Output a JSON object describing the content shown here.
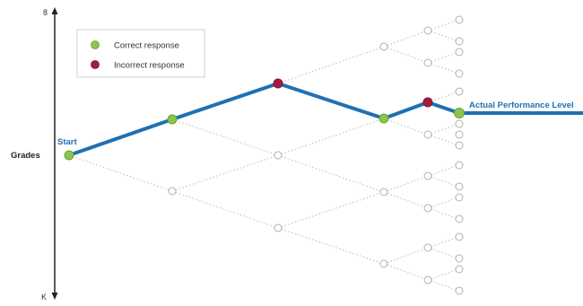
{
  "axis": {
    "top_label": "8",
    "bottom_label": "K",
    "side_label": "Grades"
  },
  "legend": {
    "items": [
      {
        "label": "Correct response",
        "color": "#8dc54b"
      },
      {
        "label": "Incorrect response",
        "color": "#a51c3e"
      }
    ]
  },
  "labels": {
    "start": "Start",
    "end": "Actual Performance Level"
  },
  "colors": {
    "path": "#1f70b3",
    "correct": "#8dc54b",
    "incorrect": "#a51c3e",
    "label_blue": "#1f70b3"
  }
}
